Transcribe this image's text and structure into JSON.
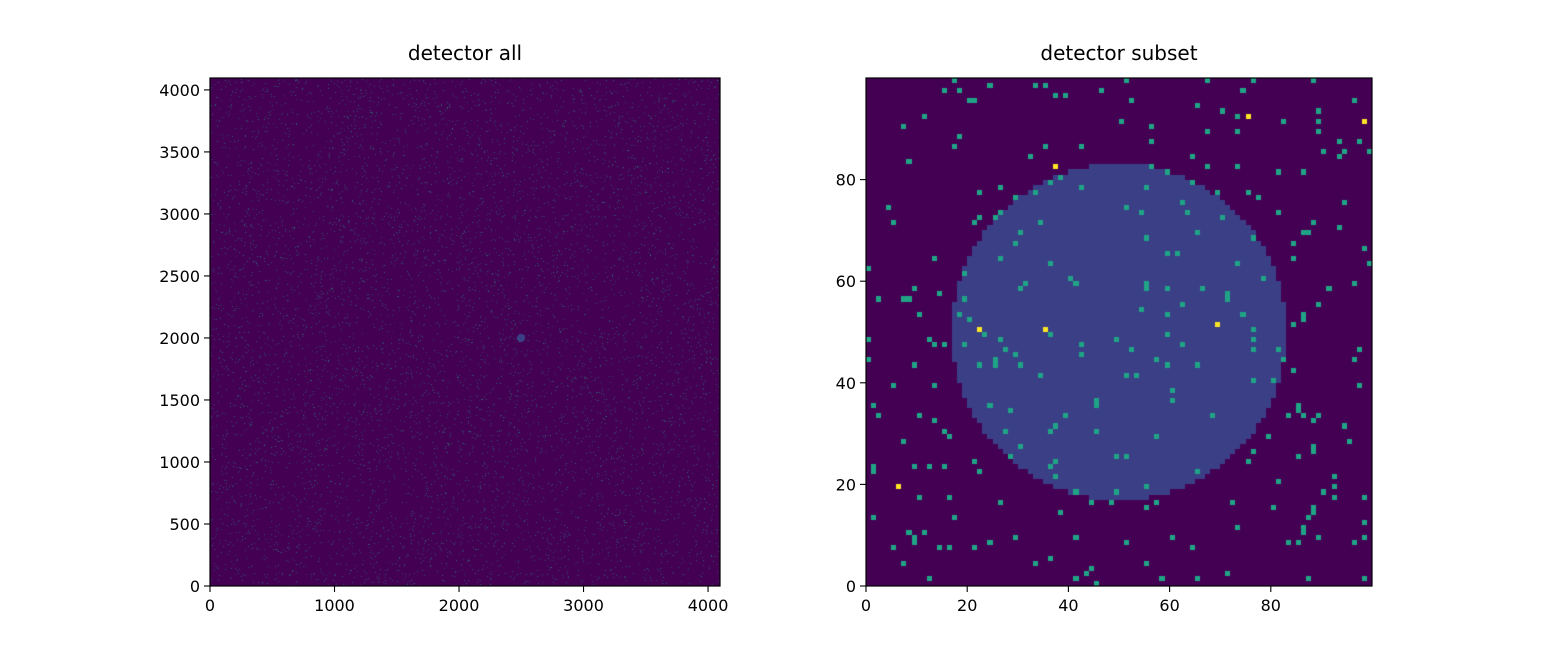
{
  "chart_data": [
    {
      "type": "heatmap",
      "title": "detector all",
      "xlim": [
        0,
        4096
      ],
      "ylim": [
        0,
        4096
      ],
      "x_ticks": [
        0,
        1000,
        2000,
        3000,
        4000
      ],
      "y_ticks": [
        0,
        500,
        1000,
        1500,
        2000,
        2500,
        3000,
        3500,
        4000
      ],
      "x_tick_labels": [
        "0",
        "1000",
        "2000",
        "3000",
        "4000"
      ],
      "y_tick_labels": [
        "0",
        "500",
        "1000",
        "1500",
        "2000",
        "2500",
        "3000",
        "3500",
        "4000"
      ],
      "colormap": "viridis",
      "background_value": 0,
      "noise_hit_fraction": 0.03,
      "disk": {
        "center": [
          2500,
          2000
        ],
        "radius": 33,
        "value": 1
      }
    },
    {
      "type": "heatmap",
      "title": "detector subset",
      "xlim": [
        0,
        100
      ],
      "ylim": [
        0,
        100
      ],
      "x_ticks": [
        0,
        20,
        40,
        60,
        80
      ],
      "y_ticks": [
        0,
        20,
        40,
        60,
        80
      ],
      "x_tick_labels": [
        "0",
        "20",
        "40",
        "60",
        "80"
      ],
      "y_tick_labels": [
        "0",
        "20",
        "40",
        "60",
        "80"
      ],
      "colormap": "viridis",
      "value_range": [
        0,
        3
      ],
      "background_value": 0,
      "disk": {
        "center": [
          50,
          50
        ],
        "radius": 33,
        "value": 1
      },
      "hit_value": 2,
      "hits_per_100_pixels": 2.8,
      "high_hits": [
        {
          "x": 22,
          "y": 50,
          "value": 3
        },
        {
          "x": 35,
          "y": 50,
          "value": 3
        },
        {
          "x": 69,
          "y": 51,
          "value": 3
        },
        {
          "x": 37,
          "y": 82,
          "value": 3
        },
        {
          "x": 75,
          "y": 92,
          "value": 3
        },
        {
          "x": 6,
          "y": 19,
          "value": 3
        },
        {
          "x": 98,
          "y": 91,
          "value": 3
        }
      ]
    }
  ],
  "colors": {
    "viridis_0": "#440154",
    "viridis_1": "#3b3f86",
    "viridis_2": "#20a486",
    "viridis_3": "#fde725"
  }
}
